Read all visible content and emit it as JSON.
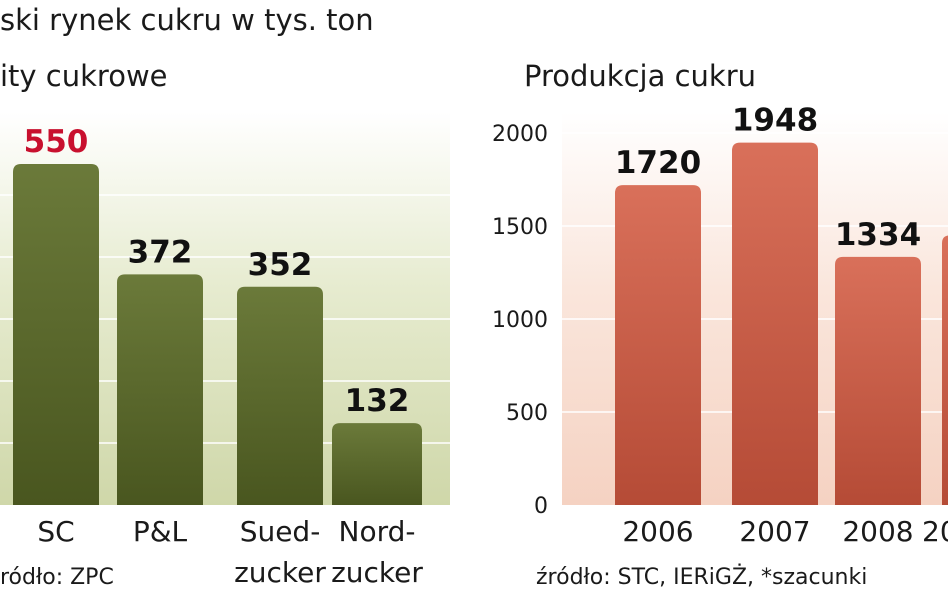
{
  "header": {
    "title": "ski rynek cukru w tys. ton"
  },
  "chart_data": [
    {
      "type": "bar",
      "title": "ity cukrowe",
      "categories": [
        {
          "line1": "SC",
          "line2": ""
        },
        {
          "line1": "P&L",
          "line2": ""
        },
        {
          "line1": "Sued-",
          "line2": "zucker"
        },
        {
          "line1": "Nord-",
          "line2": "zucker"
        }
      ],
      "values": [
        550,
        372,
        352,
        132
      ],
      "value_labels": [
        "550",
        "372",
        "352",
        "132"
      ],
      "source": "ródło: ZPC",
      "ylim": [
        0,
        600
      ],
      "grid": true,
      "colors": {
        "bar_top": "#6b7a3a",
        "bar_bottom": "#49561f",
        "background": "#cfd7a9",
        "grid": "#ffffff",
        "highlight_label": "#c8102e"
      }
    },
    {
      "type": "bar",
      "title": "Produkcja cukru",
      "categories": [
        "2006",
        "2007",
        "2008",
        "20"
      ],
      "values": [
        1720,
        1948,
        1334,
        1450
      ],
      "value_labels": [
        "1720",
        "1948",
        "1334",
        ""
      ],
      "yticks": [
        "0",
        "500",
        "1000",
        "1500",
        "2000"
      ],
      "source": "źródło: STC, IERiGŻ, *szacunki",
      "ylim": [
        0,
        2000
      ],
      "grid": true,
      "colors": {
        "bar_top": "#d9705a",
        "bar_bottom": "#b54b36",
        "background": "#f5d2c2",
        "grid": "#ffffff"
      }
    }
  ]
}
